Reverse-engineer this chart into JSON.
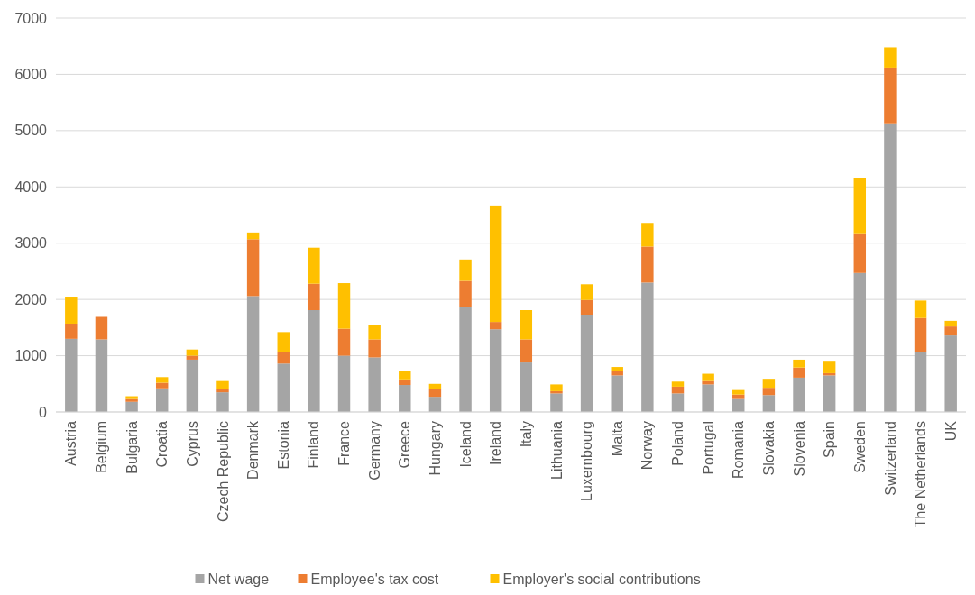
{
  "chart_data": {
    "type": "bar",
    "stacked": true,
    "categories": [
      "Austria",
      "Belgium",
      "Bulgaria",
      "Croatia",
      "Cyprus",
      "Czech Republic",
      "Denmark",
      "Estonia",
      "Finland",
      "France",
      "Germany",
      "Greece",
      "Hungary",
      "Iceland",
      "Ireland",
      "Italy",
      "Lithuania",
      "Luxembourg",
      "Malta",
      "Norway",
      "Poland",
      "Portugal",
      "Romania",
      "Slovakia",
      "Slovenia",
      "Spain",
      "Sweden",
      "Switzerland",
      "The Netherlands",
      "UK"
    ],
    "series": [
      {
        "name": "Net wage",
        "color": "#a5a5a5",
        "values": [
          1300,
          1290,
          180,
          420,
          930,
          350,
          2060,
          860,
          1810,
          1000,
          970,
          480,
          270,
          1860,
          1470,
          880,
          330,
          1730,
          650,
          2300,
          330,
          490,
          230,
          300,
          610,
          650,
          2470,
          5130,
          1060,
          1360
        ]
      },
      {
        "name": "Employee's tax cost",
        "color": "#ed7d31",
        "values": [
          270,
          400,
          50,
          100,
          70,
          60,
          1010,
          200,
          470,
          480,
          320,
          100,
          140,
          470,
          130,
          410,
          40,
          260,
          80,
          640,
          120,
          60,
          80,
          130,
          180,
          40,
          690,
          990,
          610,
          160
        ]
      },
      {
        "name": "Employer's social contributions",
        "color": "#ffc000",
        "values": [
          480,
          0,
          50,
          100,
          110,
          140,
          120,
          360,
          640,
          810,
          260,
          150,
          90,
          380,
          2070,
          520,
          120,
          280,
          70,
          420,
          90,
          130,
          80,
          160,
          140,
          220,
          1000,
          360,
          310,
          100
        ]
      }
    ],
    "ylim": [
      0,
      7000
    ],
    "yticks": [
      0,
      1000,
      2000,
      3000,
      4000,
      5000,
      6000,
      7000
    ],
    "grid": "y",
    "legend": "bottom"
  }
}
